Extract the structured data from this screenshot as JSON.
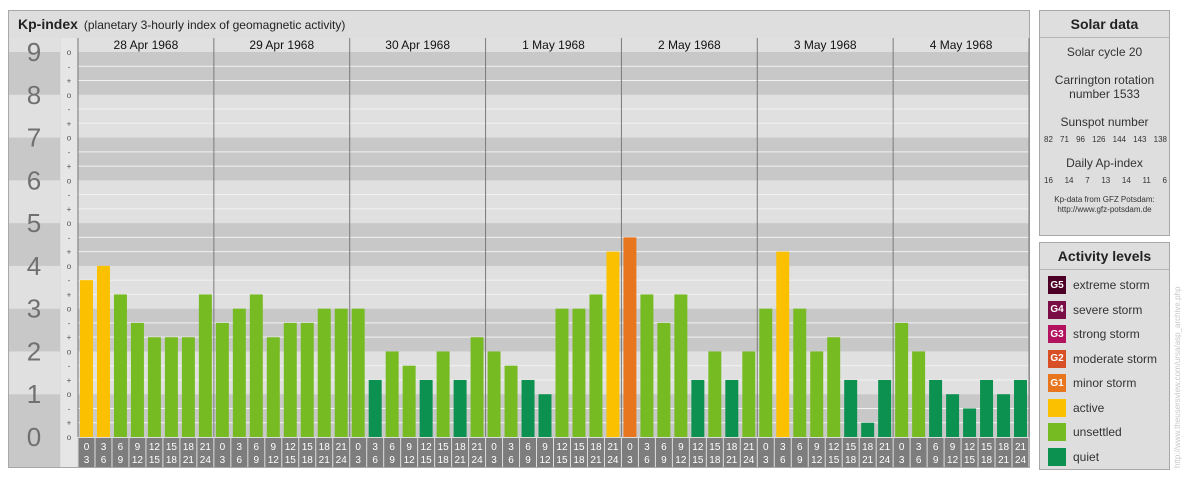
{
  "chart_data": {
    "type": "bar",
    "title": "Kp-index",
    "subtitle": "(planetary 3-hourly index of geomagnetic activity)",
    "ylim": [
      0,
      9
    ],
    "y_ticks": [
      "0",
      "1",
      "2",
      "3",
      "4",
      "5",
      "6",
      "7",
      "8",
      "9"
    ],
    "minor_ticks": [
      "o",
      "+",
      "-"
    ],
    "days": [
      "28 Apr 1968",
      "29 Apr 1968",
      "30 Apr 1968",
      "1 May 1968",
      "2 May 1968",
      "3 May 1968",
      "4 May 1968"
    ],
    "intervals": [
      {
        "top": "0",
        "bottom": "3"
      },
      {
        "top": "3",
        "bottom": "6"
      },
      {
        "top": "6",
        "bottom": "9"
      },
      {
        "top": "9",
        "bottom": "12"
      },
      {
        "top": "12",
        "bottom": "15"
      },
      {
        "top": "15",
        "bottom": "18"
      },
      {
        "top": "18",
        "bottom": "21"
      },
      {
        "top": "21",
        "bottom": "24"
      }
    ],
    "kp_values": [
      [
        3.667,
        4.0,
        3.333,
        2.667,
        2.333,
        2.333,
        2.333,
        3.333
      ],
      [
        2.667,
        3.0,
        3.333,
        2.333,
        2.667,
        2.667,
        3.0,
        3.0
      ],
      [
        3.0,
        1.333,
        2.0,
        1.667,
        1.333,
        2.0,
        1.333,
        2.333
      ],
      [
        2.0,
        1.667,
        1.333,
        1.0,
        3.0,
        3.0,
        3.333,
        4.333
      ],
      [
        4.667,
        3.333,
        2.667,
        3.333,
        1.333,
        2.0,
        1.333,
        2.0
      ],
      [
        3.0,
        4.333,
        3.0,
        2.0,
        2.333,
        1.333,
        0.333,
        1.333
      ],
      [
        2.667,
        2.0,
        1.333,
        1.0,
        0.667,
        1.333,
        1.0,
        1.333
      ]
    ],
    "colors": {
      "quiet": "#0d9150",
      "unsettled": "#77bb23",
      "active": "#fbc100",
      "minor_storm": "#e8761e"
    }
  },
  "solar_data": {
    "heading": "Solar data",
    "solar_cycle": "Solar cycle 20",
    "carrington_line1": "Carrington rotation",
    "carrington_line2": "number 1533",
    "sunspot_label": "Sunspot number",
    "sunspot_values": [
      "82",
      "71",
      "96",
      "126",
      "144",
      "143",
      "138"
    ],
    "ap_label": "Daily Ap-index",
    "ap_values": [
      "16",
      "14",
      "7",
      "13",
      "14",
      "11",
      "6"
    ],
    "source_line1": "Kp-data from GFZ Potsdam:",
    "source_line2": "http://www.gfz-potsdam.de"
  },
  "activity_levels": {
    "heading": "Activity levels",
    "items": [
      {
        "code": "G5",
        "label": "extreme storm",
        "color": "#4d0026"
      },
      {
        "code": "G4",
        "label": "severe storm",
        "color": "#7a0c46"
      },
      {
        "code": "G3",
        "label": "strong storm",
        "color": "#b3125f"
      },
      {
        "code": "G2",
        "label": "moderate storm",
        "color": "#d94f25"
      },
      {
        "code": "G1",
        "label": "minor storm",
        "color": "#e8761e"
      },
      {
        "code": "",
        "label": "active",
        "color": "#fbc100"
      },
      {
        "code": "",
        "label": "unsettled",
        "color": "#77bb23"
      },
      {
        "code": "",
        "label": "quiet",
        "color": "#0d9150"
      }
    ]
  },
  "watermark": "http://www.theusersview.com/ursa/asp_archive.php"
}
